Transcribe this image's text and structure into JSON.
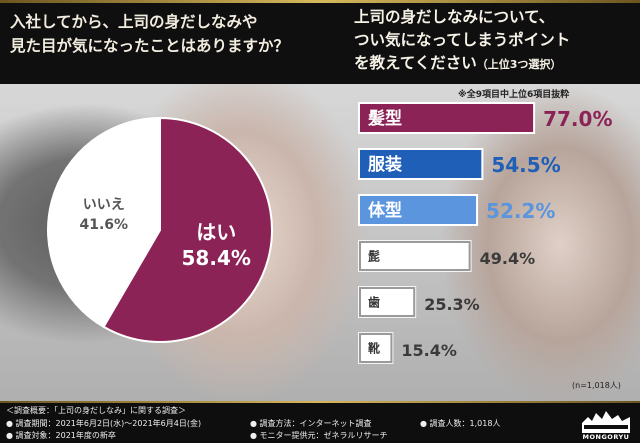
{
  "header": {
    "left_question": "入社してから、上司の身だしなみや\n見た目が気になったことはありますか？",
    "right_question": "上司の身だしなみについて、\nつい気になってしまうポイント\nを教えてください",
    "right_question_note": "（上位3つ選択）"
  },
  "notes": {
    "top_note": "※全9項目中上位6項目抜粋",
    "sample_note": "(n=1,018人)"
  },
  "chart_data": [
    {
      "type": "pie",
      "title": "入社してから、上司の身だしなみや見た目が気になったことはありますか？",
      "slices": [
        {
          "label": "はい",
          "value": 58.4,
          "value_text": "58.4%",
          "color": "#8b2356"
        },
        {
          "label": "いいえ",
          "value": 41.6,
          "value_text": "41.6%",
          "color": "#ffffff"
        }
      ]
    },
    {
      "type": "bar",
      "orientation": "horizontal",
      "title": "上司の身だしなみについて、つい気になってしまうポイントを教えてください",
      "categories": [
        "髪型",
        "服装",
        "体型",
        "髭",
        "歯",
        "靴"
      ],
      "values": [
        77.0,
        54.5,
        52.2,
        49.4,
        25.3,
        15.4
      ],
      "value_texts": [
        "77.0%",
        "54.5%",
        "52.2%",
        "49.4%",
        "25.3%",
        "15.4%"
      ],
      "colors": [
        "#8b2356",
        "#1f5fb8",
        "#5a95de",
        "#9a9a9a",
        "#9a9a9a",
        "#9a9a9a"
      ],
      "value_colors": [
        "#8b2356",
        "#1f5fb8",
        "#5a95de",
        "#3a3a3a",
        "#3a3a3a",
        "#3a3a3a"
      ],
      "xlim": [
        0,
        100
      ]
    }
  ],
  "footer": {
    "title": "＜調査概要：「上司の身だしなみ」に関する調査＞",
    "period": "● 調査期間：2021年6月2日(水)～2021年6月4日(金)",
    "target": "● 調査対象：2021年度の新卒",
    "method": "● 調査方法：インターネット調査",
    "provider": "● モニター提供元：ゼネラルリサーチ",
    "count": "● 調査人数：1,018人",
    "logo_text": "MONGORYU"
  }
}
